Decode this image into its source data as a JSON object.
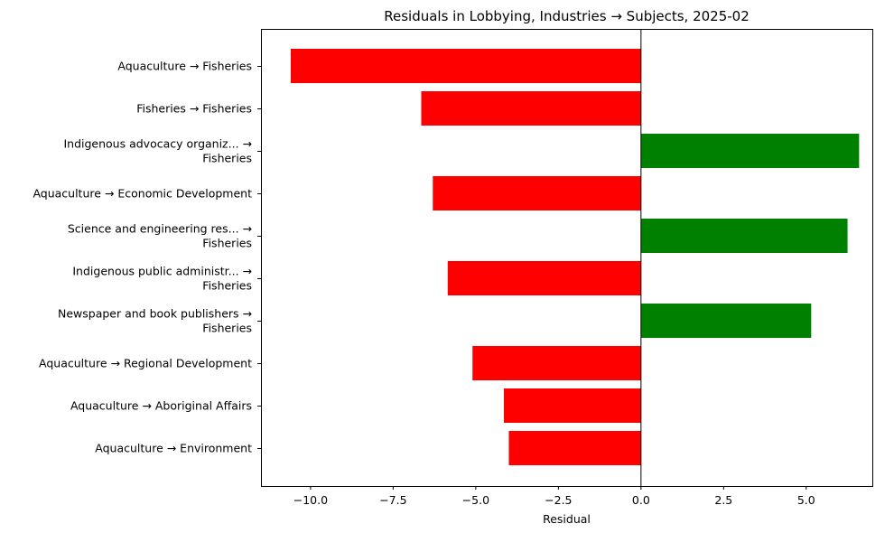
{
  "chart_data": {
    "type": "bar",
    "orientation": "horizontal",
    "title": "Residuals in Lobbying, Industries → Subjects, 2025-02",
    "xlabel": "Residual",
    "ylabel": "",
    "xlim": [
      -11.5,
      7.0
    ],
    "xticks": [
      -10.0,
      -7.5,
      -5.0,
      -2.5,
      0.0,
      2.5,
      5.0
    ],
    "xtick_labels": [
      "−10.0",
      "−7.5",
      "−5.0",
      "−2.5",
      "0.0",
      "2.5",
      "5.0"
    ],
    "zero_line": 0,
    "grid": false,
    "colors": {
      "positive": "#008000",
      "negative": "#ff0000"
    },
    "categories": [
      [
        "Aquaculture → Fisheries"
      ],
      [
        "Fisheries → Fisheries"
      ],
      [
        "Indigenous advocacy organiz... →",
        "Fisheries"
      ],
      [
        "Aquaculture → Economic Development"
      ],
      [
        "Science and engineering res... →",
        "Fisheries"
      ],
      [
        "Indigenous public administr... →",
        "Fisheries"
      ],
      [
        "Newspaper and book publishers →",
        "Fisheries"
      ],
      [
        "Aquaculture → Regional Development"
      ],
      [
        "Aquaculture → Aboriginal Affairs"
      ],
      [
        "Aquaculture → Environment"
      ]
    ],
    "values": [
      -10.6,
      -6.65,
      6.6,
      -6.3,
      6.25,
      -5.85,
      5.15,
      -5.1,
      -4.15,
      -4.0
    ]
  }
}
